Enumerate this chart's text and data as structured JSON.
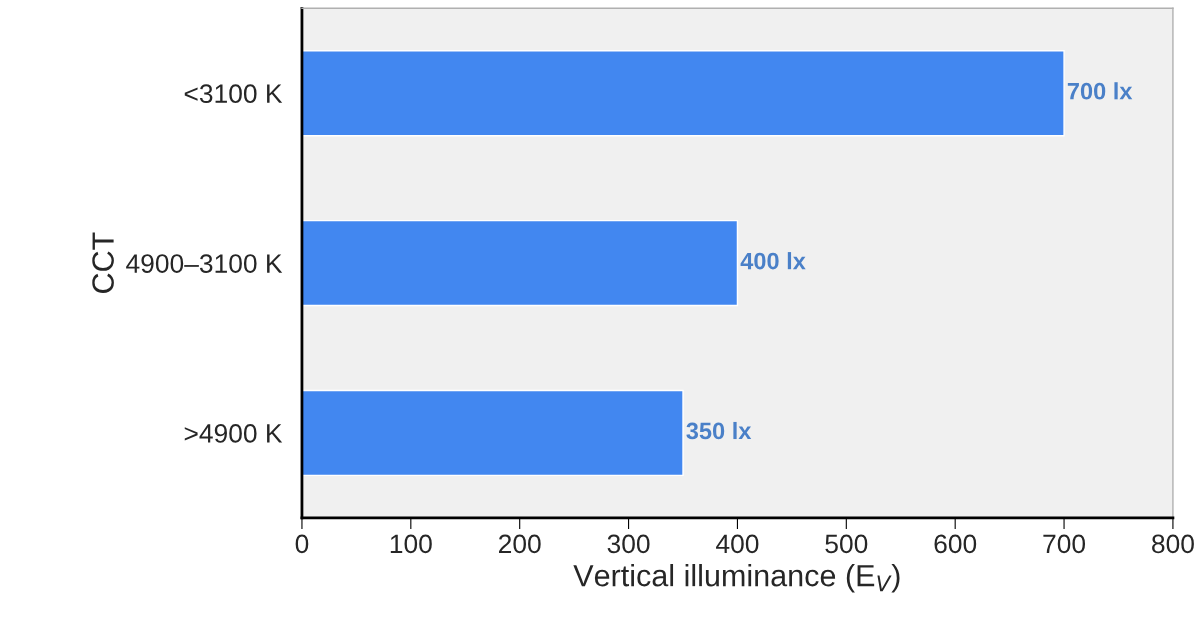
{
  "chart_data": {
    "type": "bar",
    "orientation": "horizontal",
    "categories": [
      "<3100 K",
      "4900–3100 K",
      ">4900 K"
    ],
    "values": [
      700,
      400,
      350
    ],
    "value_labels": [
      "700 lx",
      "400 lx",
      "350 lx"
    ],
    "color": "#4287f0",
    "xlabel": "Vertical illuminance (E$_{V}$)",
    "ylabel": "CCT",
    "xlim": [
      0,
      800
    ],
    "xticks": [
      0,
      100,
      200,
      300,
      400,
      500,
      600,
      700,
      800
    ],
    "grid": false,
    "legend": false
  }
}
